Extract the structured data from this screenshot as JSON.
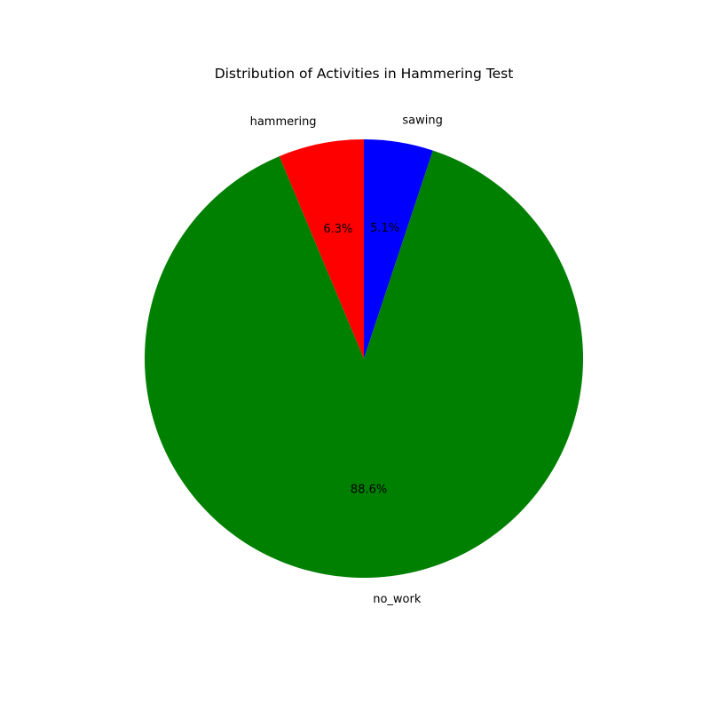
{
  "chart_data": {
    "type": "pie",
    "title": "Distribution of Activities in Hammering Test",
    "slices": [
      {
        "label": "sawing",
        "value": 5.1,
        "pct_label": "5.1%",
        "color": "#0000ff"
      },
      {
        "label": "no_work",
        "value": 88.6,
        "pct_label": "88.6%",
        "color": "#008000"
      },
      {
        "label": "hammering",
        "value": 6.3,
        "pct_label": "6.3%",
        "color": "#ff0000"
      }
    ],
    "start_angle_deg": 90,
    "direction": "clockwise",
    "legend": "none"
  }
}
